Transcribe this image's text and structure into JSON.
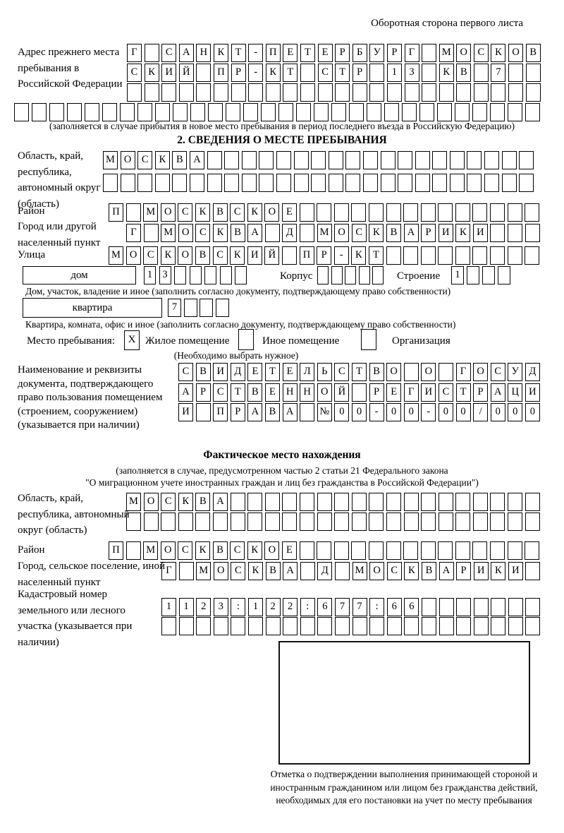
{
  "page": {
    "back_side_note": "Оборотная сторона первого листа"
  },
  "previous_address": {
    "label": "Адрес прежнего места пребывания в Российской Федерации",
    "row1": "Г САНКТ-ПЕТЕРБУРГ МОСКОВ",
    "row2": "СКИЙ ПР-КТ СТР 13 КВ 7  ",
    "row3": "                        ",
    "row4": "                              ",
    "note": "(заполняется в случае прибытия в новое место пребывания в период последнего въезда в Российскую Федерацию)"
  },
  "section2": {
    "title": "2. СВЕДЕНИЯ О МЕСТЕ ПРЕБЫВАНИЯ",
    "region": {
      "label": "Область, край, республика, автономный округ (область)",
      "row1": "МОСКВА                   ",
      "row2": "                         "
    },
    "district": {
      "label": "Район",
      "row": "П МОСКВСКОЕ              "
    },
    "city": {
      "label": "Город или другой населенный пункт",
      "row": "Г МОСКВА Д МОСКВАРИКИ   "
    },
    "street": {
      "label": "Улица",
      "row": "МОСКОВСКИЙ ПР-КТ         "
    },
    "house": {
      "box_label": "дом",
      "cells": "13     ",
      "korpus_label": "Корпус",
      "korpus_cells": "     ",
      "stroenie_label": "Строение",
      "stroenie_cells": "1   ",
      "note": "Дом, участок, владение и иное (заполнить согласно документу, подтверждающему право собственности)"
    },
    "apartment": {
      "box_label": "квартира",
      "cells": "7   ",
      "note": "Квартира, комната, офис и иное (заполнить согласно документу, подтверждающему право собственности)"
    },
    "stay_type": {
      "label": "Место пребывания:",
      "checked_mark": "X",
      "option1": "Жилое помещение",
      "option2": "Иное помещение",
      "option3": "Организация",
      "note": "(Необходимо выбрать нужное)"
    },
    "document": {
      "label": "Наименование и реквизиты документа, подтверждающего право пользования помещением (строением, сооружением) (указывается при наличии)",
      "row1": "СВИДЕТЕЛЬСТВО О ГОСУД",
      "row2": "АРСТВЕННОЙ РЕГИСТРАЦИ",
      "row3": "И ПРАВА №00-00-00/000"
    }
  },
  "actual_location": {
    "title": "Фактическое место нахождения",
    "note_line1": "(заполняется в случае, предусмотренном частью 2 статьи 21 Федерального закона",
    "note_line2": "\"О миграционном учете иностранных граждан и лиц без гражданства в Российской Федерации\")",
    "region": {
      "label": "Область, край, республика, автономный округ (область)",
      "row1": "МОСКВА                  ",
      "row2": "                        "
    },
    "district": {
      "label": "Район",
      "row": "П МОСКВСКОЕ              "
    },
    "city": {
      "label": "Город, сельское поселение, иной населенный пункт",
      "row": "Г МОСКВА Д МОСКВАРИКИ "
    },
    "cadastral": {
      "label": "Кадастровый номер земельного или лесного участка (указывается при наличии)",
      "row1": "1123:122:677:66       ",
      "row2": "                      "
    },
    "stamp_note": "Отметка о подтверждении выполнения принимающей стороной и иностранным гражданином или лицом без гражданства действий, необходимых для его постановки на учет по месту пребывания"
  }
}
